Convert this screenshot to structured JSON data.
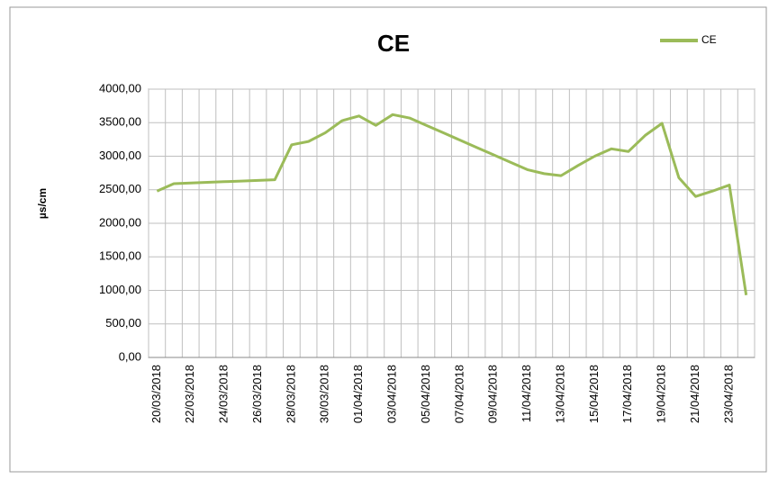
{
  "chart_data": {
    "type": "line",
    "title": "CE",
    "y_label": "µs/cm",
    "categories": [
      "20/03/2018",
      null,
      "22/03/2018",
      null,
      "24/03/2018",
      null,
      "26/03/2018",
      null,
      "28/03/2018",
      null,
      "30/03/2018",
      null,
      "01/04/2018",
      null,
      "03/04/2018",
      null,
      "05/04/2018",
      null,
      "07/04/2018",
      null,
      "09/04/2018",
      null,
      "11/04/2018",
      null,
      "13/04/2018",
      null,
      "15/04/2018",
      null,
      "17/04/2018",
      null,
      "19/04/2018",
      null,
      "21/04/2018",
      null,
      "23/04/2018",
      null
    ],
    "series": [
      {
        "name": "CE",
        "color": "#9bbb59",
        "values": [
          2480,
          2590,
          2600,
          2610,
          2620,
          2630,
          2640,
          2650,
          3170,
          3220,
          3350,
          3530,
          3600,
          3460,
          3620,
          3570,
          3460,
          3350,
          3240,
          3130,
          3020,
          2910,
          2800,
          2740,
          2710,
          2860,
          3000,
          3110,
          3070,
          3310,
          3490,
          2680,
          2400,
          2480,
          2570,
          930
        ]
      }
    ],
    "ylim": [
      0,
      4000
    ],
    "yticks": [
      {
        "value": 0,
        "label": "0,00"
      },
      {
        "value": 500,
        "label": "500,00"
      },
      {
        "value": 1000,
        "label": "1000,00"
      },
      {
        "value": 1500,
        "label": "1500,00"
      },
      {
        "value": 2000,
        "label": "2000,00"
      },
      {
        "value": 2500,
        "label": "2500,00"
      },
      {
        "value": 3000,
        "label": "3000,00"
      },
      {
        "value": 3500,
        "label": "3500,00"
      },
      {
        "value": 4000,
        "label": "4000,00"
      }
    ],
    "grid": true,
    "legend": "top-right"
  }
}
